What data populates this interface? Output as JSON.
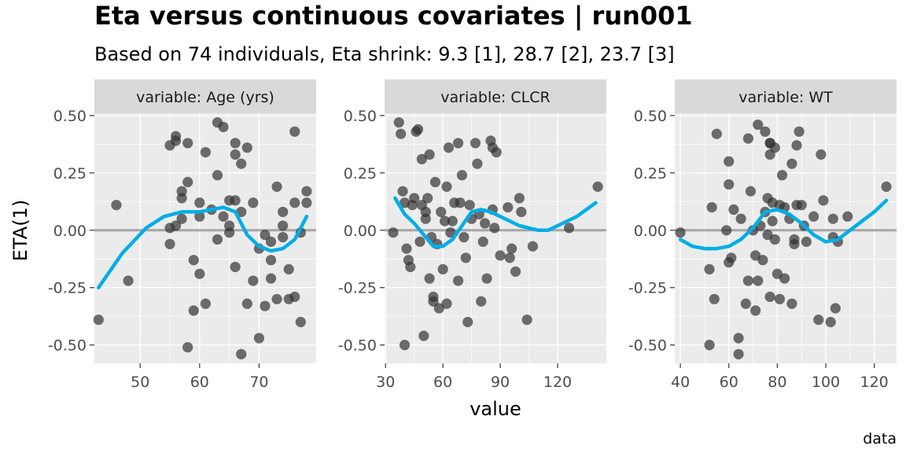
{
  "title": "Eta versus continuous covariates | run001",
  "subtitle": "Based on 74 individuals, Eta shrink: 9.3 [1], 28.7 [2], 23.7 [3]",
  "caption": "data",
  "colors": {
    "panel_bg": "#ebebeb",
    "strip_bg": "#d9d9d9",
    "grid": "#ffffff",
    "point": "#333333",
    "smooth": "#00aee6",
    "zero_line": "#a6a6a6"
  },
  "chart_data": {
    "type": "scatter",
    "xlabel": "value",
    "ylabel": "ETA(1)",
    "ylim": [
      -0.58,
      0.51
    ],
    "yticks": [
      0.5,
      0.25,
      0.0,
      -0.25,
      -0.5
    ],
    "ytick_labels": [
      "0.50",
      "0.25",
      "0.00",
      "-0.25",
      "-0.50"
    ],
    "zero_line": 0,
    "panels": [
      {
        "strip": "variable: Age (yrs)",
        "xlim": [
          42.3,
          79.6
        ],
        "xticks": [
          50,
          60,
          70
        ],
        "xtick_labels": [
          "50",
          "60",
          "70"
        ],
        "points": [
          [
            43,
            -0.39
          ],
          [
            46,
            0.11
          ],
          [
            48,
            -0.22
          ],
          [
            55,
            0.37
          ],
          [
            55,
            0.01
          ],
          [
            55,
            -0.06
          ],
          [
            56,
            0.41
          ],
          [
            56,
            0.39
          ],
          [
            56,
            0.02
          ],
          [
            57,
            0.17
          ],
          [
            57,
            0.14
          ],
          [
            57,
            0.05
          ],
          [
            58,
            0.21
          ],
          [
            58,
            0.38
          ],
          [
            58,
            -0.51
          ],
          [
            59,
            -0.13
          ],
          [
            59,
            -0.35
          ],
          [
            60,
            0.12
          ],
          [
            60,
            -0.19
          ],
          [
            60,
            0.06
          ],
          [
            61,
            0.34
          ],
          [
            61,
            -0.32
          ],
          [
            62,
            0.09
          ],
          [
            63,
            0.47
          ],
          [
            63,
            0.24
          ],
          [
            63,
            -0.04
          ],
          [
            64,
            0.06
          ],
          [
            64,
            0.45
          ],
          [
            65,
            0.13
          ],
          [
            65,
            0.02
          ],
          [
            65,
            -0.01
          ],
          [
            66,
            0.38
          ],
          [
            66,
            0.33
          ],
          [
            66,
            0.13
          ],
          [
            66,
            -0.16
          ],
          [
            67,
            0.29
          ],
          [
            67,
            0.08
          ],
          [
            67,
            -0.54
          ],
          [
            68,
            0.36
          ],
          [
            68,
            -0.32
          ],
          [
            69,
            0.12
          ],
          [
            69,
            -0.22
          ],
          [
            70,
            -0.47
          ],
          [
            70,
            -0.08
          ],
          [
            71,
            -0.02
          ],
          [
            71,
            -0.33
          ],
          [
            72,
            -0.21
          ],
          [
            72,
            -0.05
          ],
          [
            72,
            -0.13
          ],
          [
            73,
            0.19
          ],
          [
            73,
            -0.3
          ],
          [
            74,
            0.08
          ],
          [
            74,
            0.02
          ],
          [
            74,
            -0.03
          ],
          [
            75,
            -0.17
          ],
          [
            75,
            -0.3
          ],
          [
            76,
            0.43
          ],
          [
            76,
            0.12
          ],
          [
            76,
            -0.29
          ],
          [
            77,
            -0.4
          ],
          [
            77,
            -0.01
          ],
          [
            78,
            0.17
          ],
          [
            78,
            0.12
          ]
        ],
        "smooth": [
          [
            43,
            -0.25
          ],
          [
            47,
            -0.1
          ],
          [
            51,
            0.01
          ],
          [
            54,
            0.06
          ],
          [
            57,
            0.08
          ],
          [
            60,
            0.08
          ],
          [
            62,
            0.09
          ],
          [
            64,
            0.1
          ],
          [
            66,
            0.08
          ],
          [
            68,
            -0.02
          ],
          [
            70,
            -0.07
          ],
          [
            72,
            -0.09
          ],
          [
            74,
            -0.08
          ],
          [
            76,
            -0.04
          ],
          [
            78,
            0.06
          ]
        ]
      },
      {
        "strip": "variable: CLCR",
        "xlim": [
          29.5,
          145.5
        ],
        "xticks": [
          30,
          60,
          90,
          120
        ],
        "xtick_labels": [
          "30",
          "60",
          "90",
          "120"
        ],
        "points": [
          [
            34,
            -0.01
          ],
          [
            37,
            0.47
          ],
          [
            38,
            0.42
          ],
          [
            39,
            0.17
          ],
          [
            40,
            0.12
          ],
          [
            40,
            -0.5
          ],
          [
            41,
            -0.08
          ],
          [
            42,
            -0.13
          ],
          [
            43,
            -0.16
          ],
          [
            44,
            0.11
          ],
          [
            45,
            0.14
          ],
          [
            46,
            0.43
          ],
          [
            47,
            0.44
          ],
          [
            48,
            -0.05
          ],
          [
            49,
            0.31
          ],
          [
            49,
            0.11
          ],
          [
            50,
            -0.46
          ],
          [
            51,
            0.08
          ],
          [
            51,
            0.05
          ],
          [
            52,
            0.14
          ],
          [
            53,
            0.33
          ],
          [
            53,
            -0.21
          ],
          [
            54,
            -0.03
          ],
          [
            55,
            -0.31
          ],
          [
            55,
            -0.29
          ],
          [
            56,
            0.21
          ],
          [
            57,
            -0.06
          ],
          [
            58,
            -0.34
          ],
          [
            59,
            0.08
          ],
          [
            60,
            -0.17
          ],
          [
            61,
            0.04
          ],
          [
            62,
            0.19
          ],
          [
            62,
            -0.32
          ],
          [
            63,
            0.36
          ],
          [
            64,
            -0.01
          ],
          [
            65,
            0.04
          ],
          [
            66,
            0.12
          ],
          [
            68,
            0.38
          ],
          [
            68,
            -0.22
          ],
          [
            69,
            0.12
          ],
          [
            70,
            0.24
          ],
          [
            71,
            -0.03
          ],
          [
            72,
            -0.12
          ],
          [
            73,
            -0.4
          ],
          [
            74,
            0.11
          ],
          [
            75,
            0.05
          ],
          [
            77,
            0.38
          ],
          [
            78,
            0.29
          ],
          [
            79,
            0.07
          ],
          [
            80,
            -0.31
          ],
          [
            81,
            -0.05
          ],
          [
            82,
            0.03
          ],
          [
            83,
            -0.21
          ],
          [
            85,
            0.39
          ],
          [
            86,
            0.36
          ],
          [
            86,
            0.09
          ],
          [
            87,
            0.01
          ],
          [
            88,
            0.34
          ],
          [
            90,
            -0.11
          ],
          [
            94,
            0.1
          ],
          [
            95,
            -0.12
          ],
          [
            96,
            -0.08
          ],
          [
            98,
            -0.18
          ],
          [
            100,
            0.14
          ],
          [
            101,
            0.08
          ],
          [
            104,
            -0.39
          ],
          [
            107,
            -0.07
          ],
          [
            126,
            0.01
          ],
          [
            141,
            0.19
          ]
        ],
        "smooth": [
          [
            35,
            0.14
          ],
          [
            40,
            0.07
          ],
          [
            45,
            0.03
          ],
          [
            50,
            -0.02
          ],
          [
            55,
            -0.07
          ],
          [
            60,
            -0.07
          ],
          [
            65,
            -0.04
          ],
          [
            70,
            0.02
          ],
          [
            75,
            0.08
          ],
          [
            80,
            0.09
          ],
          [
            85,
            0.08
          ],
          [
            90,
            0.06
          ],
          [
            95,
            0.04
          ],
          [
            100,
            0.02
          ],
          [
            105,
            0.01
          ],
          [
            110,
            0.0
          ],
          [
            115,
            0.0
          ],
          [
            120,
            0.02
          ],
          [
            125,
            0.04
          ],
          [
            130,
            0.06
          ],
          [
            135,
            0.09
          ],
          [
            140,
            0.12
          ]
        ]
      },
      {
        "strip": "variable: WT",
        "xlim": [
          37.7,
          129.2
        ],
        "xticks": [
          40,
          60,
          80,
          100,
          120
        ],
        "xtick_labels": [
          "40",
          "60",
          "80",
          "100",
          "120"
        ],
        "points": [
          [
            40,
            -0.01
          ],
          [
            52,
            -0.17
          ],
          [
            52,
            -0.5
          ],
          [
            53,
            0.1
          ],
          [
            54,
            -0.3
          ],
          [
            55,
            0.42
          ],
          [
            59,
            0.0
          ],
          [
            60,
            0.3
          ],
          [
            60,
            0.2
          ],
          [
            60,
            -0.14
          ],
          [
            61,
            -0.12
          ],
          [
            62,
            0.09
          ],
          [
            64,
            -0.47
          ],
          [
            64,
            -0.54
          ],
          [
            65,
            0.05
          ],
          [
            67,
            -0.32
          ],
          [
            68,
            -0.22
          ],
          [
            68,
            0.4
          ],
          [
            69,
            0.17
          ],
          [
            70,
            0.0
          ],
          [
            71,
            -0.11
          ],
          [
            71,
            -0.35
          ],
          [
            72,
            0.46
          ],
          [
            72,
            -0.22
          ],
          [
            73,
            0.02
          ],
          [
            74,
            -0.13
          ],
          [
            75,
            0.43
          ],
          [
            75,
            0.08
          ],
          [
            76,
            0.14
          ],
          [
            76,
            -0.02
          ],
          [
            77,
            0.38
          ],
          [
            77,
            0.38
          ],
          [
            77,
            0.33
          ],
          [
            77,
            -0.29
          ],
          [
            78,
            0.12
          ],
          [
            78,
            0.04
          ],
          [
            79,
            0.36
          ],
          [
            79,
            -0.04
          ],
          [
            80,
            -0.19
          ],
          [
            81,
            0.11
          ],
          [
            81,
            -0.3
          ],
          [
            82,
            0.24
          ],
          [
            83,
            -0.21
          ],
          [
            83,
            0.1
          ],
          [
            85,
            0.05
          ],
          [
            86,
            0.29
          ],
          [
            86,
            -0.32
          ],
          [
            87,
            -0.04
          ],
          [
            87,
            -0.06
          ],
          [
            88,
            0.37
          ],
          [
            88,
            0.11
          ],
          [
            89,
            0.43
          ],
          [
            90,
            0.11
          ],
          [
            91,
            0.02
          ],
          [
            92,
            -0.05
          ],
          [
            95,
            0.06
          ],
          [
            97,
            -0.39
          ],
          [
            98,
            0.33
          ],
          [
            99,
            0.13
          ],
          [
            102,
            -0.4
          ],
          [
            103,
            0.05
          ],
          [
            103,
            -0.03
          ],
          [
            104,
            -0.34
          ],
          [
            105,
            -0.05
          ],
          [
            109,
            0.06
          ],
          [
            125,
            0.19
          ]
        ],
        "smooth": [
          [
            40,
            -0.04
          ],
          [
            45,
            -0.07
          ],
          [
            50,
            -0.08
          ],
          [
            55,
            -0.08
          ],
          [
            60,
            -0.07
          ],
          [
            65,
            -0.04
          ],
          [
            70,
            0.01
          ],
          [
            75,
            0.08
          ],
          [
            80,
            0.09
          ],
          [
            85,
            0.07
          ],
          [
            90,
            0.03
          ],
          [
            95,
            -0.02
          ],
          [
            100,
            -0.05
          ],
          [
            105,
            -0.04
          ],
          [
            110,
            0.0
          ],
          [
            115,
            0.04
          ],
          [
            120,
            0.08
          ],
          [
            125,
            0.13
          ]
        ]
      }
    ]
  }
}
